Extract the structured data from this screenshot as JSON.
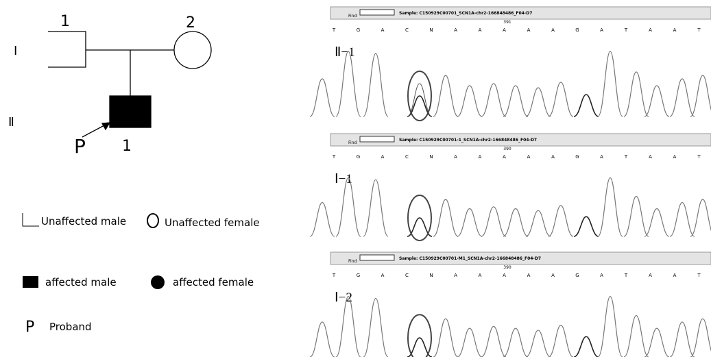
{
  "pedigree": {
    "generations": [
      "Ⅰ",
      "Ⅱ"
    ],
    "father_label": "1",
    "mother_label": "2",
    "proband_label": "1",
    "proband_marker": "P"
  },
  "legend": {
    "unaffected_male": "Unaffected male",
    "unaffected_female": "Unaffected female",
    "affected_male": "affected male",
    "affected_female": "affected female",
    "proband_marker": "P",
    "proband": "Proband"
  },
  "panels": [
    {
      "label": "Ⅱ−1",
      "find": "Find",
      "sample": "Sample: C150929C00701_SCN1A-chr2-166848486_F04-D7",
      "position": "391",
      "bases": [
        "T",
        "G",
        "A",
        "C",
        "N",
        "A",
        "A",
        "A",
        "A",
        "A",
        "G",
        "A",
        "T",
        "A",
        "A",
        "T"
      ]
    },
    {
      "label": "Ⅰ−1",
      "find": "Find",
      "sample": "Sample: C150929C00701-1_SCN1A-chr2-166848486_F04-D7",
      "position": "390",
      "bases": [
        "T",
        "G",
        "A",
        "C",
        "N",
        "A",
        "A",
        "A",
        "A",
        "A",
        "G",
        "A",
        "T",
        "A",
        "A",
        "T"
      ]
    },
    {
      "label": "Ⅰ−2",
      "find": "Find",
      "sample": "Sample: C150929C00701-M1_SCN1A-chr2-166848486_F04-D7",
      "position": "390",
      "bases": [
        "T",
        "G",
        "A",
        "C",
        "N",
        "A",
        "A",
        "A",
        "A",
        "A",
        "G",
        "A",
        "T",
        "A",
        "A",
        "T"
      ]
    }
  ]
}
